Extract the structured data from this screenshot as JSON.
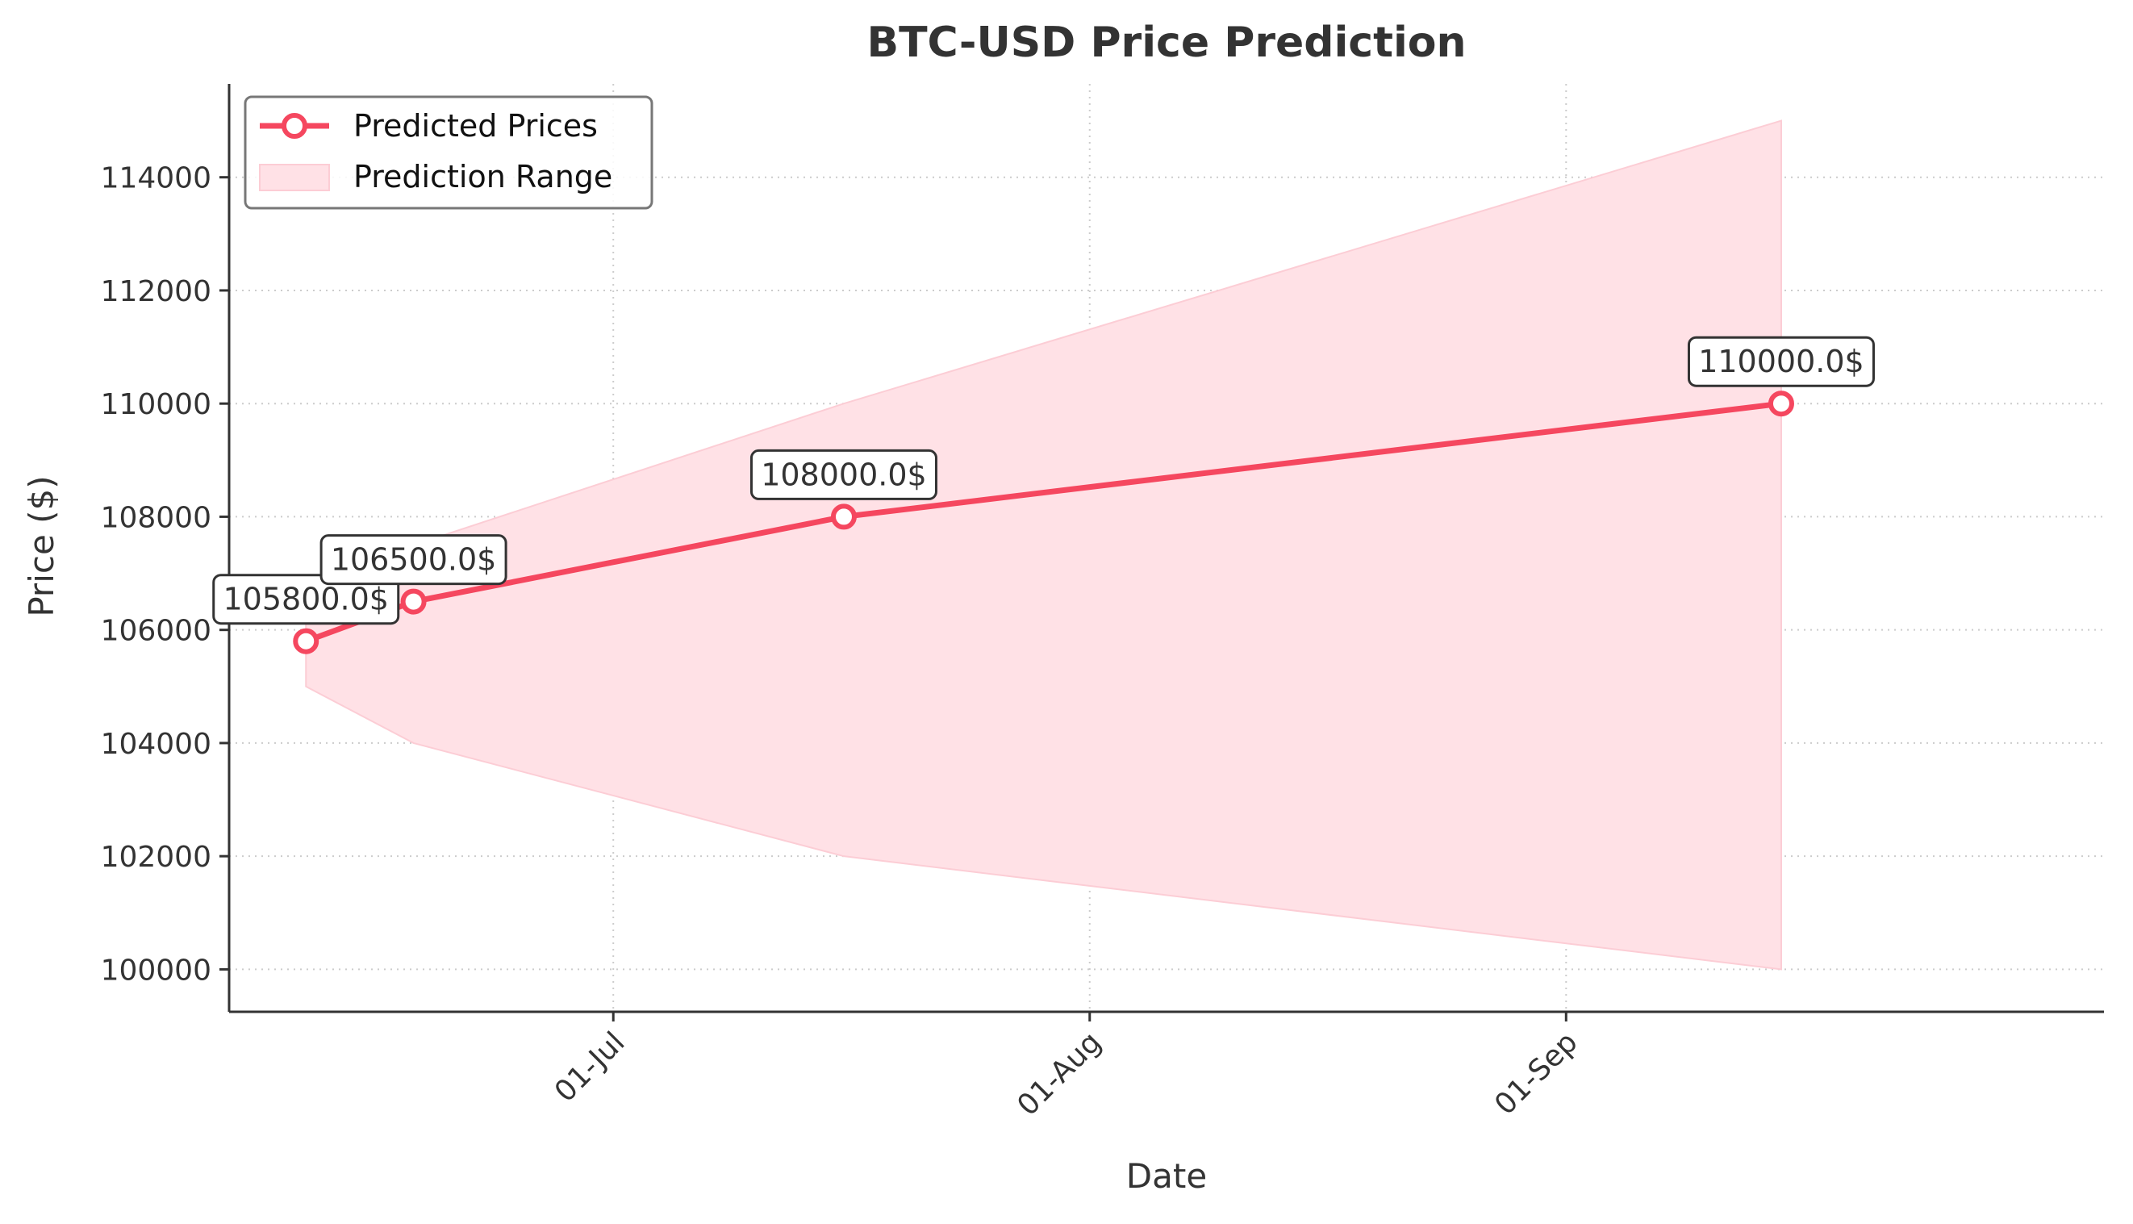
{
  "chart_data": {
    "type": "line",
    "title": "BTC-USD Price Prediction",
    "xlabel": "Date",
    "ylabel": "Price ($)",
    "x_ticks": [
      {
        "date": "2025-07-01",
        "label": "01-Jul"
      },
      {
        "date": "2025-08-01",
        "label": "01-Aug"
      },
      {
        "date": "2025-09-01",
        "label": "01-Sep"
      }
    ],
    "xlim": [
      "2025-06-06",
      "2025-10-06"
    ],
    "y_ticks": [
      100000,
      102000,
      104000,
      106000,
      108000,
      110000,
      112000,
      114000
    ],
    "ylim": [
      99250,
      115650
    ],
    "grid": true,
    "legend_position": "top-left",
    "series": [
      {
        "name": "Predicted Prices",
        "color": "#f5475f",
        "points": [
          {
            "date": "2025-06-11",
            "value": 105800,
            "label": "105800.0$"
          },
          {
            "date": "2025-06-18",
            "value": 106500,
            "label": "106500.0$"
          },
          {
            "date": "2025-07-16",
            "value": 108000,
            "label": "108000.0$"
          },
          {
            "date": "2025-09-15",
            "value": 110000,
            "label": "110000.0$"
          }
        ]
      }
    ],
    "range": {
      "name": "Prediction Range",
      "color": "#ffe1e6",
      "points": [
        {
          "date": "2025-06-11",
          "low": 105000,
          "high": 106500
        },
        {
          "date": "2025-06-18",
          "low": 104000,
          "high": 107500
        },
        {
          "date": "2025-07-16",
          "low": 102000,
          "high": 110000
        },
        {
          "date": "2025-09-15",
          "low": 100000,
          "high": 115000
        }
      ]
    }
  }
}
